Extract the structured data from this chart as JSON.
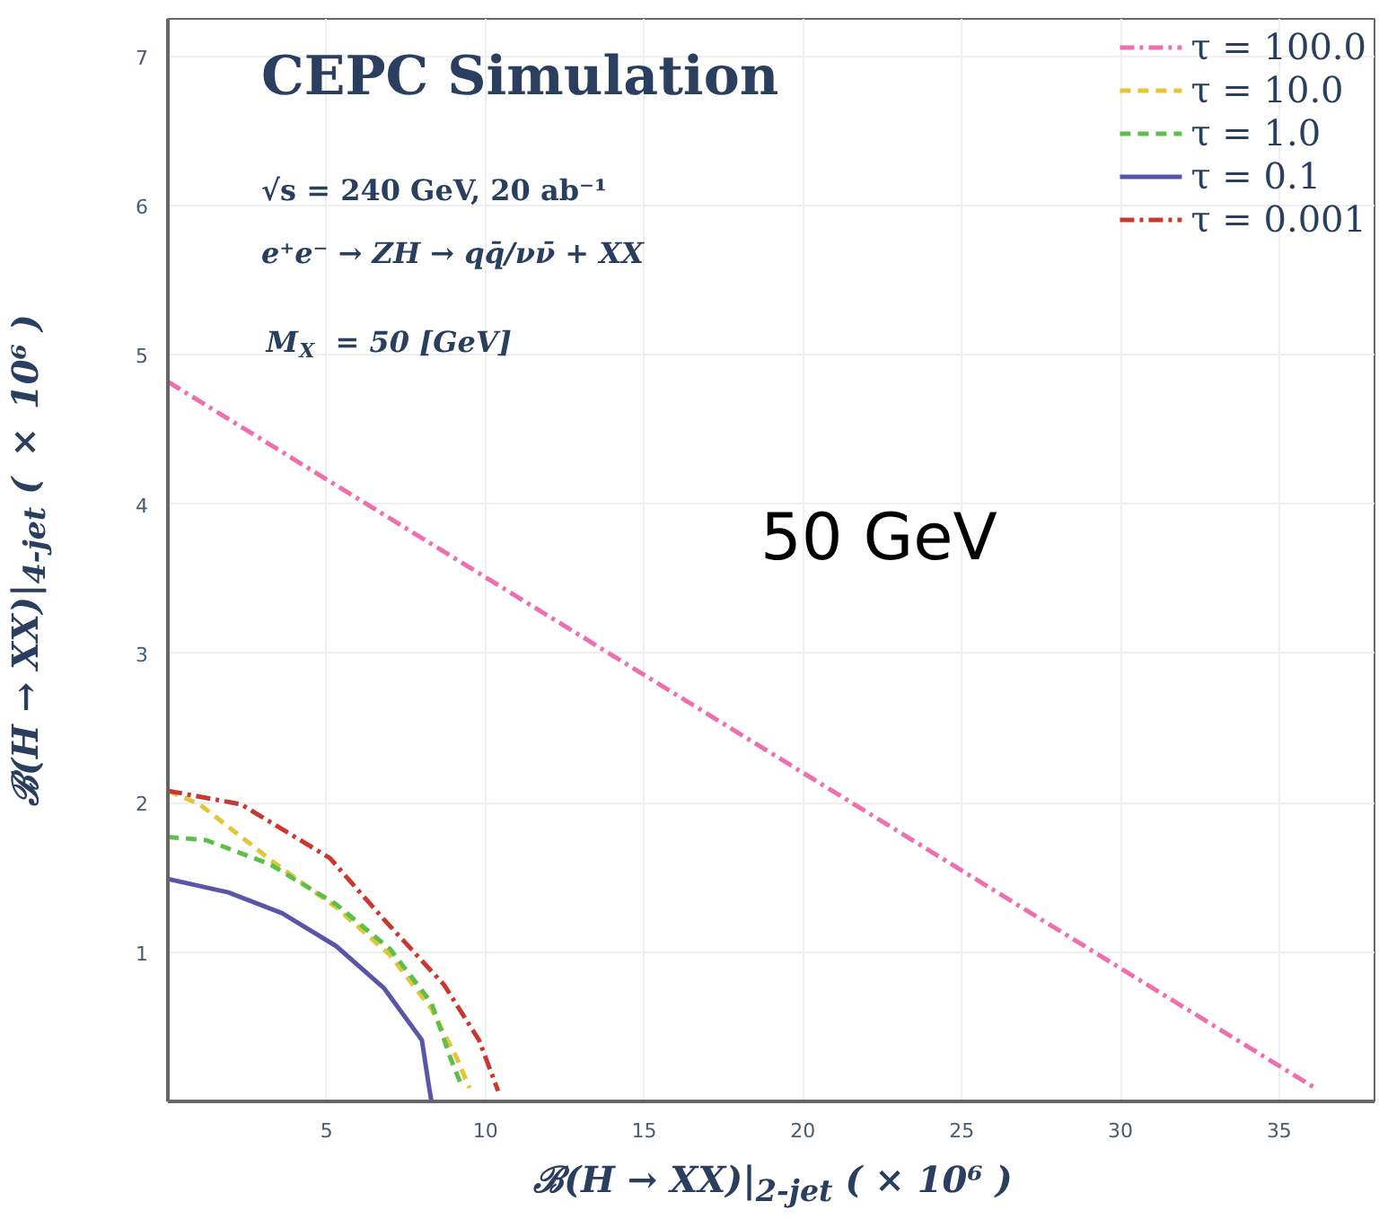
{
  "chart_data": {
    "type": "line",
    "xlabel": "ℬ(H → XX)|$_{2-jet}$ ( × 10⁶ )",
    "ylabel": "ℬ(H → XX)|$_{4-jet}$ ( × 10⁶ )",
    "annotations": [
      "CEPC Simulation",
      "√s = 240 GeV, 20 ab⁻¹",
      "e⁺e⁻ → ZH → qq̄/νν̄ + XX",
      "M$_{X}$ = 50 [GeV]",
      "50 GeV"
    ],
    "xlim": [
      0,
      38
    ],
    "ylim": [
      0,
      7.25
    ],
    "xticks": [
      5,
      10,
      15,
      20,
      25,
      30,
      35
    ],
    "yticks": [
      1,
      2,
      3,
      4,
      5,
      6,
      7
    ],
    "grid": true,
    "legend": "top right",
    "series": [
      {
        "name": "τ = 100.0",
        "color": "#ef6fae",
        "line_style": "dotted",
        "x": [
          0,
          36.2
        ],
        "values": [
          4.82,
          0.08
        ]
      },
      {
        "name": "τ = 10.0",
        "color": "#e3c53a",
        "line_style": "dashed",
        "x": [
          0,
          1.0,
          3.4,
          5.3,
          7.0,
          8.3,
          9.1,
          9.5
        ],
        "values": [
          2.08,
          1.99,
          1.59,
          1.3,
          0.98,
          0.62,
          0.29,
          0.09
        ]
      },
      {
        "name": "τ = 1.0",
        "color": "#5cbf4a",
        "line_style": "dashed",
        "x": [
          0,
          1.2,
          3.2,
          5.3,
          7.0,
          8.3,
          8.9,
          9.2
        ],
        "values": [
          1.77,
          1.75,
          1.59,
          1.32,
          1.02,
          0.66,
          0.29,
          0.13
        ]
      },
      {
        "name": "τ = 0.1",
        "color": "#5b55a8",
        "line_style": "solid",
        "x": [
          0,
          1.9,
          3.6,
          5.3,
          6.8,
          8.0,
          8.2,
          8.3
        ],
        "values": [
          1.49,
          1.4,
          1.26,
          1.04,
          0.76,
          0.41,
          0.13,
          0
        ]
      },
      {
        "name": "τ = 0.001",
        "color": "#c9382f",
        "line_style": "dotted",
        "x": [
          0,
          2.3,
          5.1,
          6.8,
          8.7,
          9.8,
          10.4
        ],
        "values": [
          2.08,
          1.99,
          1.63,
          1.22,
          0.78,
          0.41,
          0.07
        ]
      }
    ]
  }
}
